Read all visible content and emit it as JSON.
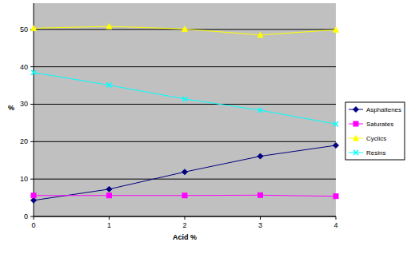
{
  "chart_data": {
    "type": "line",
    "x_label": "Acid %",
    "y_label": "%",
    "x": [
      0,
      1,
      2,
      3,
      4
    ],
    "series": [
      {
        "name": "Asphaltenes",
        "color": "#000080",
        "marker": "diamond",
        "values": [
          4.3,
          7.3,
          11.9,
          16.1,
          19.0
        ]
      },
      {
        "name": "Saturates",
        "color": "#ff00ff",
        "marker": "square",
        "values": [
          5.6,
          5.6,
          5.6,
          5.7,
          5.4
        ]
      },
      {
        "name": "Cyclics",
        "color": "#ffff00",
        "marker": "triangle",
        "values": [
          50.3,
          50.8,
          50.1,
          48.5,
          49.9
        ]
      },
      {
        "name": "Resins",
        "color": "#00ffff",
        "marker": "x",
        "values": [
          38.5,
          35.1,
          31.4,
          28.4,
          24.7
        ]
      }
    ],
    "xlim": [
      0,
      4
    ],
    "xticks": [
      0,
      1,
      2,
      3,
      4
    ],
    "ylim": [
      0,
      57
    ],
    "yticks": [
      0,
      10,
      20,
      30,
      40,
      50
    ],
    "grid": true,
    "legend": "right"
  }
}
